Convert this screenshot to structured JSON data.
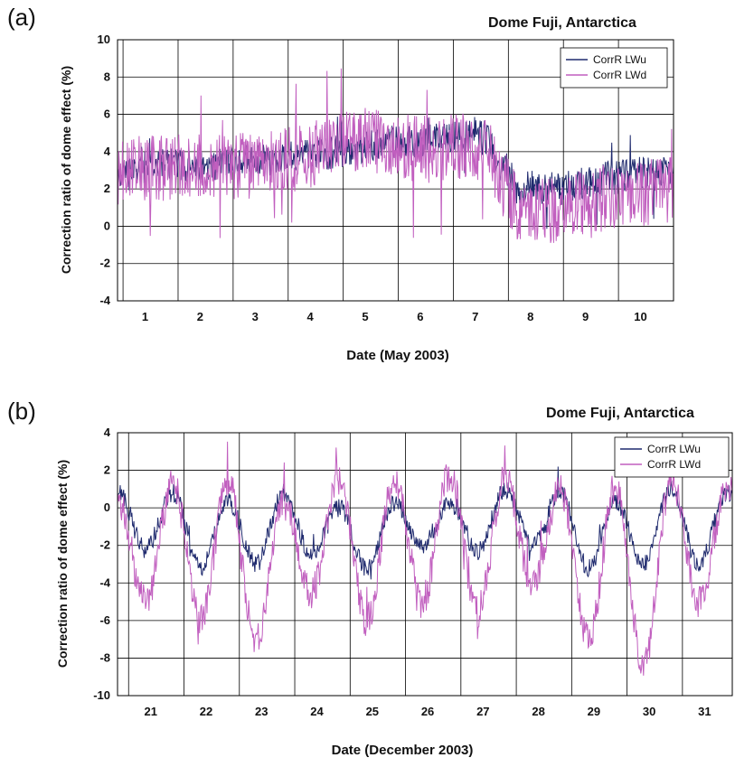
{
  "panels": [
    {
      "panel_label": "(a)",
      "site": "Dome Fuji, Antarctica",
      "xlabel": "Date (May 2003)",
      "ylabel": "Correction ratio of dome effect (%)",
      "legend": [
        "CorrR LWu",
        "CorrR LWd"
      ]
    },
    {
      "panel_label": "(b)",
      "site": "Dome Fuji, Antarctica",
      "xlabel": "Date (December 2003)",
      "ylabel": "Correction ratio of dome effect (%)",
      "legend": [
        "CorrR LWu",
        "CorrR LWd"
      ]
    }
  ],
  "colors": {
    "lwu": "#1f2a6e",
    "lwd": "#c15fbf",
    "grid": "#000000"
  },
  "chart_data": [
    {
      "type": "line",
      "title": "Dome Fuji, Antarctica",
      "xlabel": "Date (May 2003)",
      "ylabel": "Correction ratio of dome effect (%)",
      "ylim": [
        -4,
        10
      ],
      "yticks": [
        -4,
        -2,
        0,
        2,
        4,
        6,
        8,
        10
      ],
      "xlim": [
        0.5,
        10.6
      ],
      "xticks": [
        1,
        2,
        3,
        4,
        5,
        6,
        7,
        8,
        9,
        10
      ],
      "grid": true,
      "legend_position": "top-right",
      "series": [
        {
          "name": "CorrR LWu",
          "x": [
            0.5,
            1,
            1.5,
            2,
            2.5,
            3,
            3.5,
            4,
            4.5,
            5,
            5.5,
            6,
            6.5,
            7,
            7.2,
            7.5,
            7.8,
            8,
            8.5,
            9,
            9.5,
            10,
            10.6
          ],
          "y": [
            3.0,
            3.2,
            3.3,
            3.3,
            3.4,
            3.5,
            3.7,
            3.8,
            4.0,
            4.3,
            4.5,
            4.5,
            4.8,
            5.0,
            4.6,
            3.2,
            2.0,
            2.1,
            2.0,
            2.3,
            2.6,
            2.9,
            3.0
          ]
        },
        {
          "name": "CorrR LWd",
          "x": [
            0.5,
            1,
            1.5,
            2,
            2.5,
            3,
            3.5,
            4,
            4.5,
            5,
            5.5,
            6,
            6.5,
            7,
            7.2,
            7.5,
            7.8,
            8,
            8.5,
            9,
            9.5,
            10,
            10.6
          ],
          "y": [
            2.8,
            3.1,
            3.1,
            3.3,
            3.2,
            3.2,
            3.5,
            3.8,
            4.5,
            4.6,
            4.4,
            4.1,
            4.2,
            4.3,
            4.0,
            2.2,
            1.0,
            0.8,
            0.8,
            1.2,
            1.6,
            1.8,
            2.0
          ]
        }
      ]
    },
    {
      "type": "line",
      "title": "Dome Fuji, Antarctica",
      "xlabel": "Date (December 2003)",
      "ylabel": "Correction ratio of dome effect (%)",
      "ylim": [
        -10,
        4
      ],
      "yticks": [
        -10,
        -8,
        -6,
        -4,
        -2,
        0,
        2,
        4
      ],
      "xlim": [
        20.4,
        31.5
      ],
      "xticks": [
        21,
        22,
        23,
        24,
        25,
        26,
        27,
        28,
        29,
        30,
        31
      ],
      "grid": true,
      "legend_position": "top-right",
      "series": [
        {
          "name": "CorrR LWu",
          "x": [
            20.4,
            20.9,
            21.4,
            21.9,
            22.4,
            22.9,
            23.4,
            23.9,
            24.4,
            24.9,
            25.4,
            25.9,
            26.4,
            26.9,
            27.4,
            27.9,
            28.4,
            28.9,
            29.4,
            29.9,
            30.4,
            30.9,
            31.4
          ],
          "y": [
            1.0,
            -2.2,
            0.8,
            -3.2,
            0.3,
            -3.0,
            0.8,
            -2.5,
            0.0,
            -3.2,
            0.2,
            -2.0,
            0.2,
            -2.3,
            1.0,
            -2.0,
            0.8,
            -3.2,
            0.3,
            -3.0,
            1.0,
            -3.0,
            0.8
          ]
        },
        {
          "name": "CorrR LWd",
          "x": [
            20.4,
            20.9,
            21.4,
            21.9,
            22.4,
            22.9,
            23.4,
            23.9,
            24.4,
            24.9,
            25.4,
            25.9,
            26.4,
            26.9,
            27.4,
            27.9,
            28.4,
            28.9,
            29.4,
            29.9,
            30.4,
            30.9,
            31.4
          ],
          "y": [
            0.5,
            -5.0,
            1.2,
            -6.0,
            1.5,
            -7.0,
            0.2,
            -4.5,
            1.5,
            -6.0,
            1.5,
            -5.0,
            1.8,
            -5.5,
            1.5,
            -4.0,
            1.0,
            -7.0,
            1.2,
            -8.5,
            1.5,
            -5.0,
            1.0
          ]
        }
      ]
    }
  ]
}
